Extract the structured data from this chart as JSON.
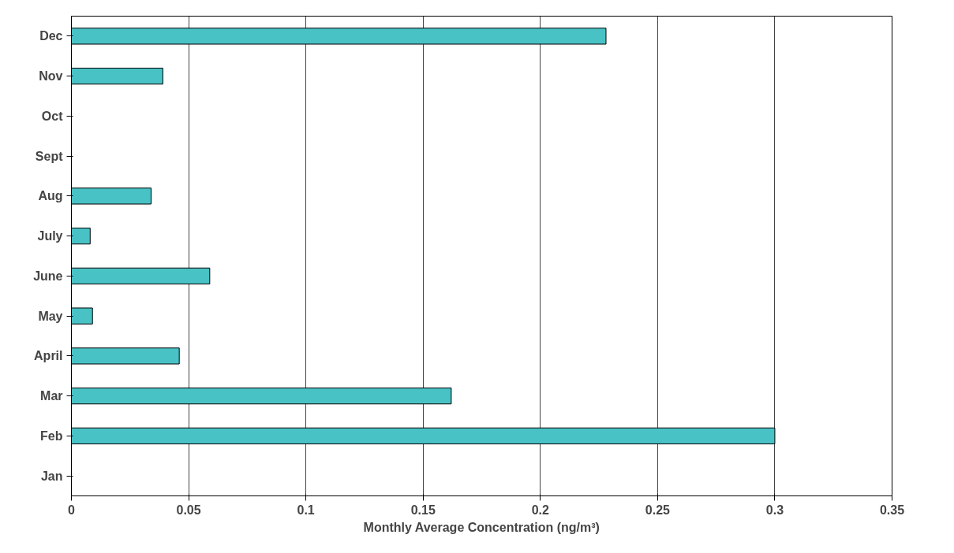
{
  "chart_data": {
    "type": "bar",
    "orientation": "horizontal",
    "xlabel": "Monthly Average Concentration (ng/m³)",
    "categories": [
      "Dec",
      "Nov",
      "Oct",
      "Sept",
      "Aug",
      "July",
      "June",
      "May",
      "April",
      "Mar",
      "Feb",
      "Jan"
    ],
    "values": [
      0.228,
      0.039,
      null,
      null,
      0.034,
      0.008,
      0.059,
      0.009,
      0.046,
      0.162,
      0.3,
      null
    ],
    "color": "#48c2c5",
    "xlim": [
      0,
      0.35
    ],
    "xticks": [
      0,
      0.05,
      0.1,
      0.15,
      0.2,
      0.25,
      0.3,
      0.35
    ],
    "grid": "x"
  }
}
